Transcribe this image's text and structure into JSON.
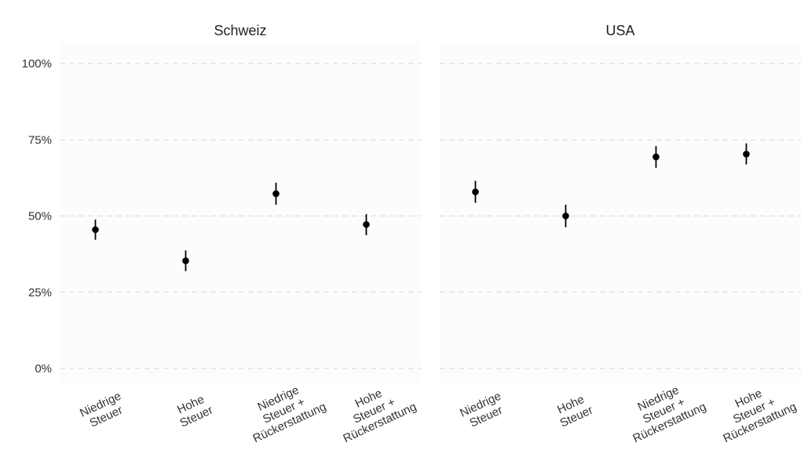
{
  "chart_data": {
    "type": "scatter",
    "y_ticks": [
      "0%",
      "25%",
      "50%",
      "75%",
      "100%"
    ],
    "ylim": [
      0,
      100
    ],
    "grid": true,
    "categories": [
      [
        "Niedrige",
        "Steuer"
      ],
      [
        "Hohe",
        "Steuer"
      ],
      [
        "Niedrige",
        "Steuer +",
        "Rückerstattung"
      ],
      [
        "Hohe",
        "Steuer +",
        "Rückerstattung"
      ]
    ],
    "panels": [
      {
        "title": "Schweiz",
        "points": [
          {
            "value": 45.5,
            "low": 42.2,
            "high": 48.8
          },
          {
            "value": 35.3,
            "low": 31.9,
            "high": 38.7
          },
          {
            "value": 57.3,
            "low": 53.7,
            "high": 60.9
          },
          {
            "value": 47.2,
            "low": 43.7,
            "high": 50.6
          }
        ]
      },
      {
        "title": "USA",
        "points": [
          {
            "value": 57.9,
            "low": 54.3,
            "high": 61.5
          },
          {
            "value": 50.0,
            "low": 46.3,
            "high": 53.7
          },
          {
            "value": 69.4,
            "low": 65.8,
            "high": 72.9
          },
          {
            "value": 70.3,
            "low": 66.9,
            "high": 73.8
          }
        ]
      }
    ]
  }
}
